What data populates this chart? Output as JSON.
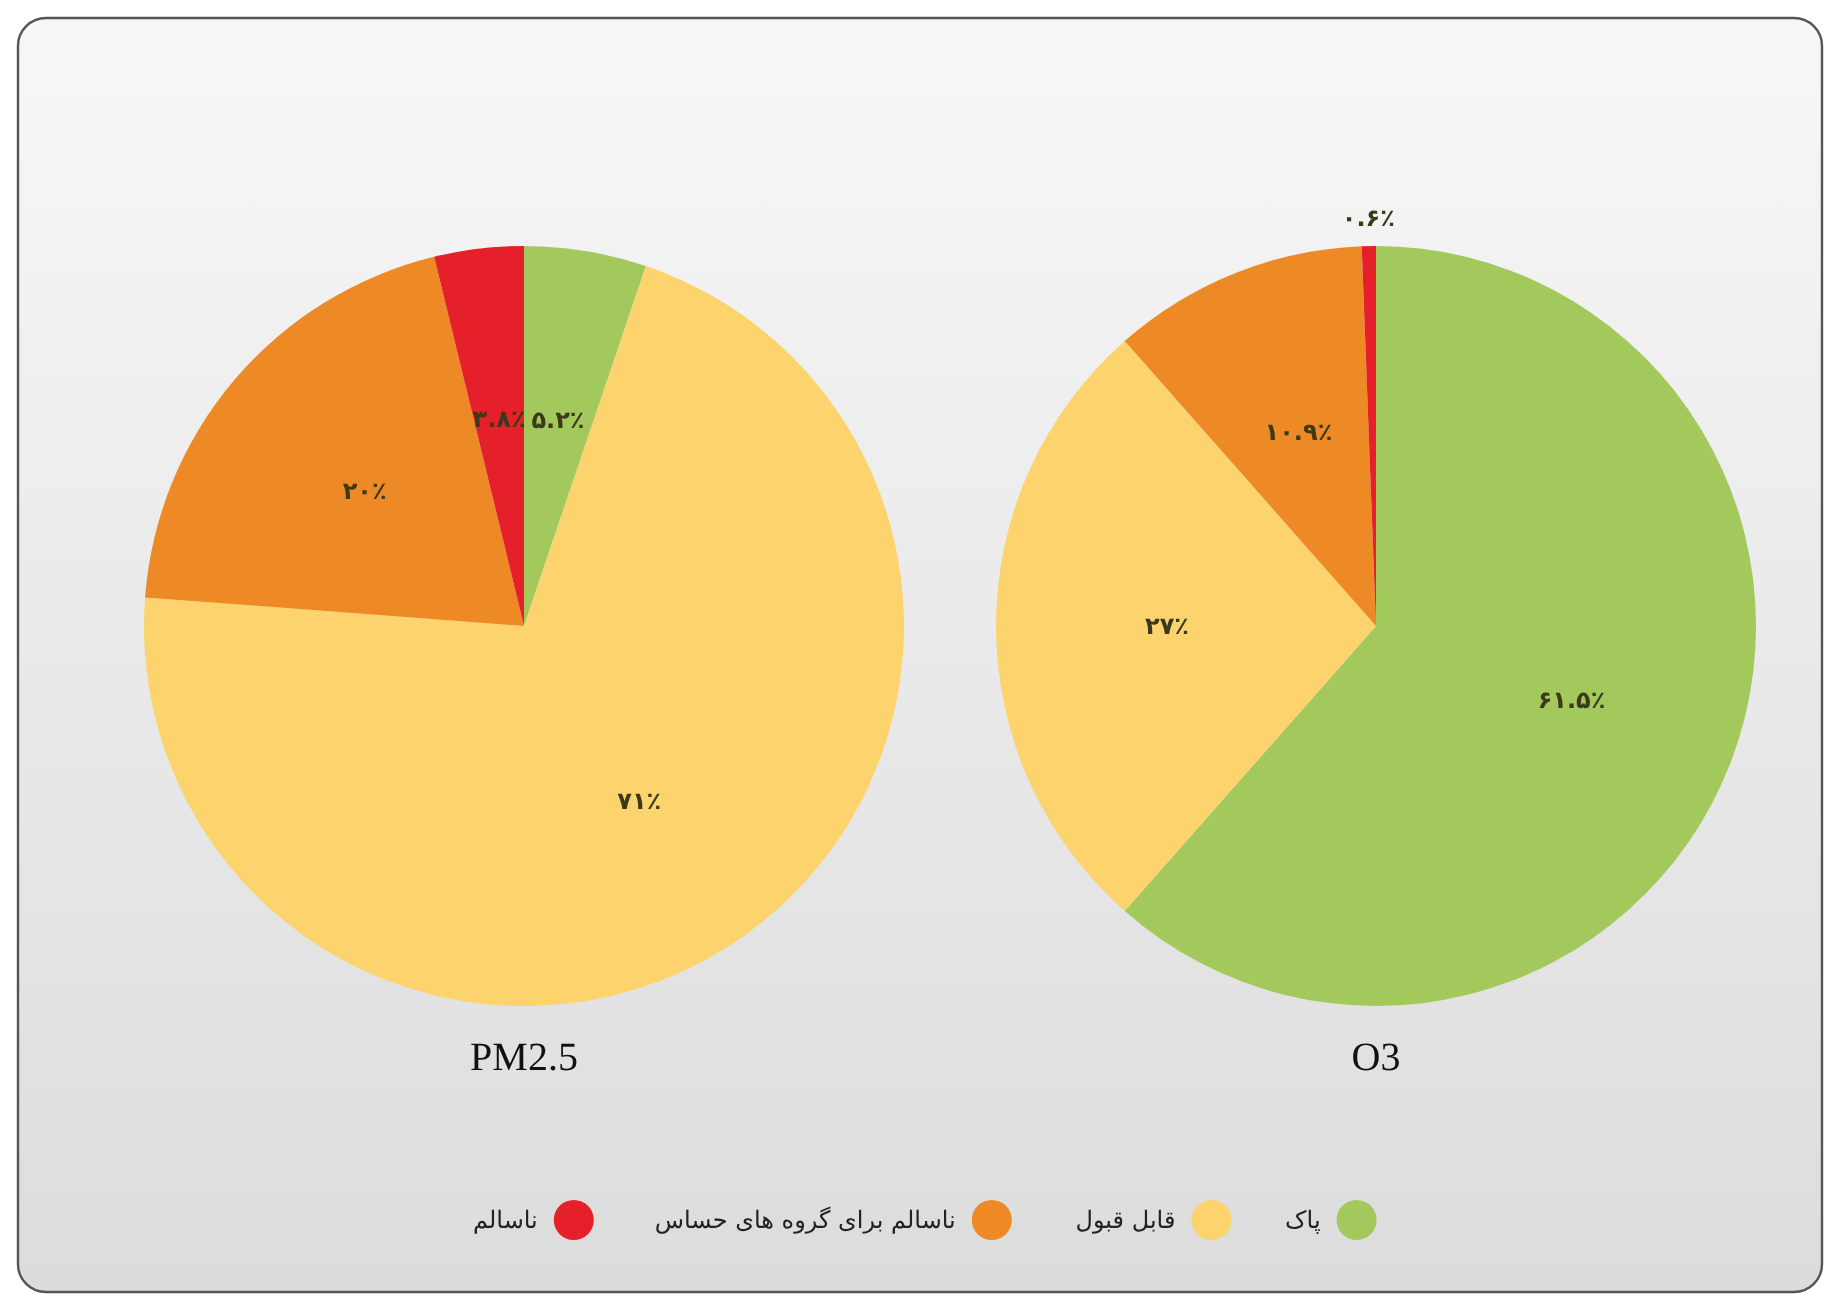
{
  "chart_data": [
    {
      "type": "pie",
      "title": "PM2.5",
      "categories": [
        "پاک",
        "قابل قبول",
        "ناسالم برای گروه های حساس",
        "ناسالم"
      ],
      "values": [
        5.2,
        71,
        20,
        3.8
      ],
      "value_labels": [
        "۵.۲٪",
        "۷۱٪",
        "۲۰٪",
        "۳.۸٪"
      ],
      "colors": [
        "#a3c95d",
        "#fdd36e",
        "#ee8a25",
        "#e5202a"
      ],
      "legend": "bottom"
    },
    {
      "type": "pie",
      "title": "O3",
      "categories": [
        null,
        null,
        null,
        null
      ],
      "values": [
        61.5,
        27,
        10.9,
        0.6
      ],
      "value_labels": [
        "۶۱.۵٪",
        "۲۷٪",
        "۱۰.۹٪",
        "۰.۶٪"
      ],
      "colors": [
        "#a3c95d",
        "#fdd36e",
        "#ee8a25",
        "#e5202a"
      ]
    }
  ]
}
